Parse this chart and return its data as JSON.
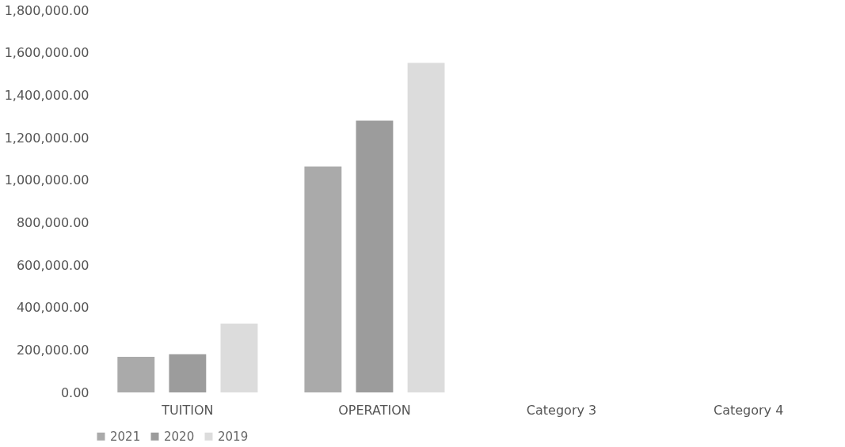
{
  "chart_data": {
    "type": "bar",
    "categories": [
      "TUITION",
      "OPERATION",
      "Category 3",
      "Category 4"
    ],
    "series": [
      {
        "name": "2021",
        "color": "#aaaaaa",
        "values": [
          168000,
          1064000,
          null,
          null
        ]
      },
      {
        "name": "2020",
        "color": "#9c9c9c",
        "values": [
          180000,
          1280000,
          null,
          null
        ]
      },
      {
        "name": "2019",
        "color": "#dcdcdc",
        "values": [
          324000,
          1552000,
          null,
          null
        ]
      }
    ],
    "ylim": [
      0,
      1800000
    ],
    "yticks": [
      {
        "value": 0,
        "label": "0.00"
      },
      {
        "value": 200000,
        "label": "200,000.00"
      },
      {
        "value": 400000,
        "label": "400,000.00"
      },
      {
        "value": 600000,
        "label": "600,000.00"
      },
      {
        "value": 800000,
        "label": "800,000.00"
      },
      {
        "value": 1000000,
        "label": "1,000,000.00"
      },
      {
        "value": 1200000,
        "label": "1,200,000.00"
      },
      {
        "value": 1400000,
        "label": "1,400,000.00"
      },
      {
        "value": 1600000,
        "label": "1,600,000.00"
      },
      {
        "value": 1800000,
        "label": "1,800,000.00"
      }
    ],
    "grid": false,
    "legend": "bottom"
  }
}
